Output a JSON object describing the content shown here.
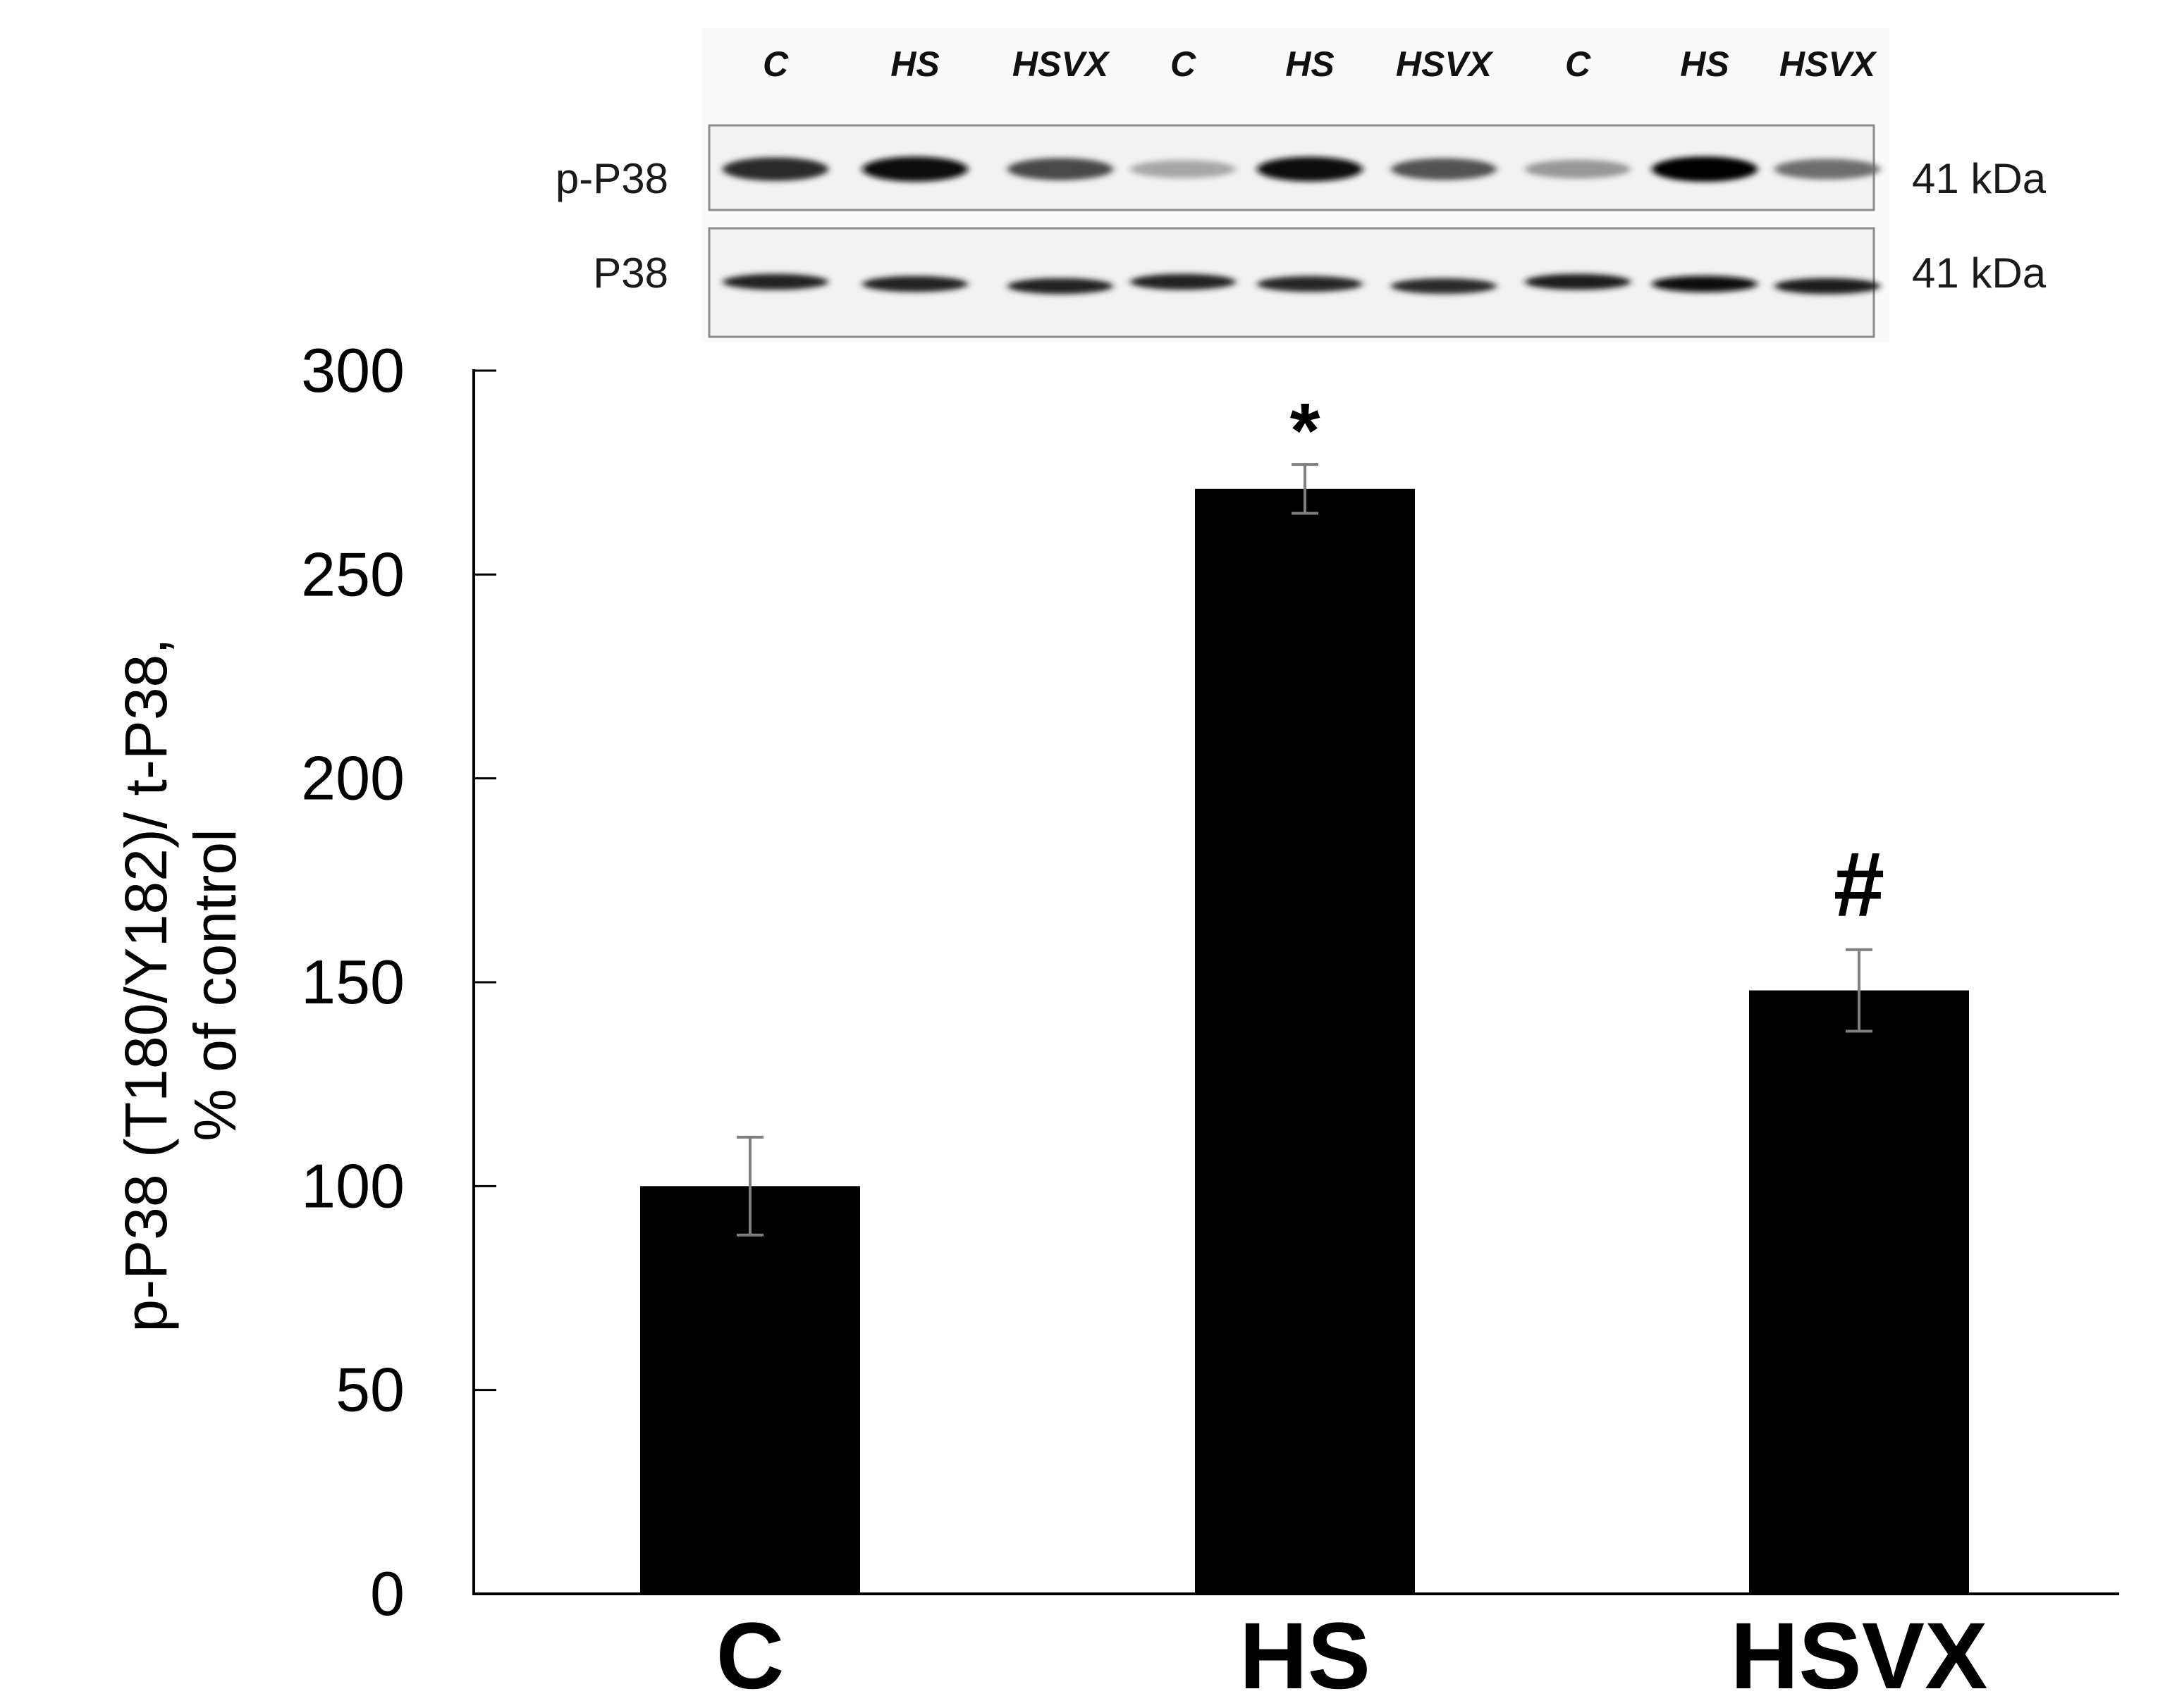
{
  "blot": {
    "lane_labels": [
      "C",
      "HS",
      "HSVX",
      "C",
      "HS",
      "HSVX",
      "C",
      "HS",
      "HSVX"
    ],
    "rows": [
      {
        "label": "p-P38",
        "size": "41 kDa",
        "band_darkness": [
          0.82,
          0.96,
          0.7,
          0.32,
          0.93,
          0.66,
          0.38,
          0.98,
          0.55
        ]
      },
      {
        "label": "P38",
        "size": "41 kDa",
        "band_darkness": [
          0.86,
          0.86,
          0.86,
          0.86,
          0.84,
          0.82,
          0.88,
          0.93,
          0.88
        ]
      }
    ]
  },
  "chart_data": {
    "type": "bar",
    "categories": [
      "C",
      "HS",
      "HSVX"
    ],
    "values": [
      100,
      271,
      148
    ],
    "errors": [
      12,
      6,
      10
    ],
    "annotations": [
      "",
      "*",
      "#"
    ],
    "ylabel_lines": [
      "p-P38 (T180/Y182)/ t-P38,",
      "% of control"
    ],
    "xlabel": "",
    "ylim": [
      0,
      300
    ],
    "yticks": [
      0,
      50,
      100,
      150,
      200,
      250,
      300
    ],
    "grid": false,
    "bar_color": "#000000",
    "error_color": "#7f7f7f"
  }
}
